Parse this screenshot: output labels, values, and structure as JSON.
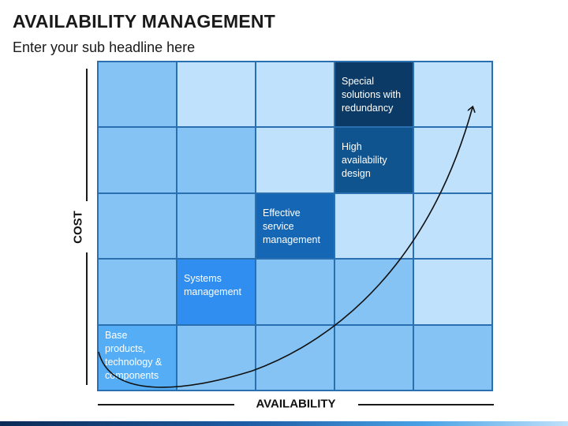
{
  "header": {
    "title": "AVAILABILITY MANAGEMENT",
    "subtitle": "Enter your sub headline here"
  },
  "axes": {
    "y_label": "COST",
    "x_label": "AVAILABILITY"
  },
  "grid": {
    "rows": [
      [
        {
          "text": "",
          "color": "#85c3f5"
        },
        {
          "text": "",
          "color": "#bfe1fb"
        },
        {
          "text": "",
          "color": "#bfe1fb"
        },
        {
          "text": "Special solutions with redundancy",
          "color": "#0c3a66"
        },
        {
          "text": "",
          "color": "#bfe1fb"
        }
      ],
      [
        {
          "text": "",
          "color": "#85c3f5"
        },
        {
          "text": "",
          "color": "#85c3f5"
        },
        {
          "text": "",
          "color": "#bfe1fb"
        },
        {
          "text": "High availability design",
          "color": "#10548f"
        },
        {
          "text": "",
          "color": "#bfe1fb"
        }
      ],
      [
        {
          "text": "",
          "color": "#85c3f5"
        },
        {
          "text": "",
          "color": "#85c3f5"
        },
        {
          "text": "Effective service management",
          "color": "#1567b5"
        },
        {
          "text": "",
          "color": "#bfe1fb"
        },
        {
          "text": "",
          "color": "#bfe1fb"
        }
      ],
      [
        {
          "text": "",
          "color": "#85c3f5"
        },
        {
          "text": "Systems management",
          "color": "#2f8ef0"
        },
        {
          "text": "",
          "color": "#85c3f5"
        },
        {
          "text": "",
          "color": "#85c3f5"
        },
        {
          "text": "",
          "color": "#bfe1fb"
        }
      ],
      [
        {
          "text": "Base products, technology & components",
          "color": "#55aef5"
        },
        {
          "text": "",
          "color": "#85c3f5"
        },
        {
          "text": "",
          "color": "#85c3f5"
        },
        {
          "text": "",
          "color": "#85c3f5"
        },
        {
          "text": "",
          "color": "#85c3f5"
        }
      ]
    ]
  },
  "colors": {
    "border": "#2a6fb0",
    "curve": "#111111"
  }
}
